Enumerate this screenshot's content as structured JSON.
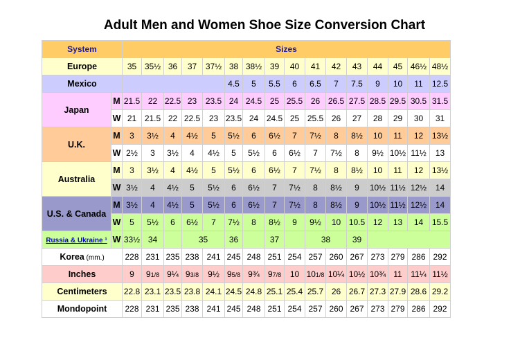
{
  "title": "Adult Men and Women Shoe Size Conversion Chart",
  "header": {
    "system_label": "System",
    "sizes_label": "Sizes"
  },
  "rows": [
    {
      "label": "Europe",
      "bg": "#ffffcc",
      "cells": [
        {
          "t": "35"
        },
        {
          "t": "35½"
        },
        {
          "t": "36"
        },
        {
          "t": "37"
        },
        {
          "t": "37½"
        },
        {
          "t": "38"
        },
        {
          "t": "38½"
        },
        {
          "t": "39"
        },
        {
          "t": "40"
        },
        {
          "t": "41"
        },
        {
          "t": "42"
        },
        {
          "t": "43"
        },
        {
          "t": "44"
        },
        {
          "t": "45"
        },
        {
          "t": "46½"
        },
        {
          "t": "48½"
        }
      ]
    },
    {
      "label": "Mexico",
      "bg": "#ccccff",
      "cells": [
        {
          "t": "",
          "span": 5
        },
        {
          "t": "4.5"
        },
        {
          "t": "5"
        },
        {
          "t": "5.5"
        },
        {
          "t": "6"
        },
        {
          "t": "6.5"
        },
        {
          "t": "7"
        },
        {
          "t": "7.5"
        },
        {
          "t": "9"
        },
        {
          "t": "10"
        },
        {
          "t": "11"
        },
        {
          "t": "12.5"
        }
      ]
    },
    {
      "label": "Japan",
      "rowspan": 2,
      "mw": "M",
      "bg": "#ffccff",
      "cells": [
        {
          "t": "21.5"
        },
        {
          "t": "22"
        },
        {
          "t": "22.5"
        },
        {
          "t": "23"
        },
        {
          "t": "23.5"
        },
        {
          "t": "24"
        },
        {
          "t": "24.5"
        },
        {
          "t": "25"
        },
        {
          "t": "25.5"
        },
        {
          "t": "26"
        },
        {
          "t": "26.5"
        },
        {
          "t": "27.5"
        },
        {
          "t": "28.5"
        },
        {
          "t": "29.5"
        },
        {
          "t": "30.5"
        },
        {
          "t": "31.5"
        }
      ]
    },
    {
      "mw": "W",
      "bg": "#ffffff",
      "cells": [
        {
          "t": "21"
        },
        {
          "t": "21.5"
        },
        {
          "t": "22"
        },
        {
          "t": "22.5"
        },
        {
          "t": "23"
        },
        {
          "t": "23.5"
        },
        {
          "t": "24"
        },
        {
          "t": "24.5"
        },
        {
          "t": "25"
        },
        {
          "t": "25.5"
        },
        {
          "t": "26"
        },
        {
          "t": "27"
        },
        {
          "t": "28"
        },
        {
          "t": "29"
        },
        {
          "t": "30"
        },
        {
          "t": "31"
        }
      ]
    },
    {
      "label": "U.K.",
      "rowspan": 2,
      "mw": "M",
      "bg": "#ffcc99",
      "cells": [
        {
          "t": "3"
        },
        {
          "t": "3½"
        },
        {
          "t": "4"
        },
        {
          "t": "4½"
        },
        {
          "t": "5"
        },
        {
          "t": "5½"
        },
        {
          "t": "6"
        },
        {
          "t": "6½"
        },
        {
          "t": "7"
        },
        {
          "t": "7½"
        },
        {
          "t": "8"
        },
        {
          "t": "8½"
        },
        {
          "t": "10"
        },
        {
          "t": "11"
        },
        {
          "t": "12"
        },
        {
          "t": "13½"
        }
      ]
    },
    {
      "mw": "W",
      "bg": "#ffffff",
      "cells": [
        {
          "t": "2½"
        },
        {
          "t": "3"
        },
        {
          "t": "3½"
        },
        {
          "t": "4"
        },
        {
          "t": "4½"
        },
        {
          "t": "5"
        },
        {
          "t": "5½"
        },
        {
          "t": "6"
        },
        {
          "t": "6½"
        },
        {
          "t": "7"
        },
        {
          "t": "7½"
        },
        {
          "t": "8"
        },
        {
          "t": "9½"
        },
        {
          "t": "10½"
        },
        {
          "t": "11½"
        },
        {
          "t": "13"
        }
      ]
    },
    {
      "label": "Australia",
      "rowspan": 2,
      "mw": "M",
      "bg": "#ffffcc",
      "cells": [
        {
          "t": "3"
        },
        {
          "t": "3½"
        },
        {
          "t": "4"
        },
        {
          "t": "4½"
        },
        {
          "t": "5"
        },
        {
          "t": "5½"
        },
        {
          "t": "6"
        },
        {
          "t": "6½"
        },
        {
          "t": "7"
        },
        {
          "t": "7½"
        },
        {
          "t": "8"
        },
        {
          "t": "8½"
        },
        {
          "t": "10"
        },
        {
          "t": "11"
        },
        {
          "t": "12"
        },
        {
          "t": "13½"
        }
      ]
    },
    {
      "mw": "W",
      "bg": "#cccccc",
      "cells": [
        {
          "t": "3½"
        },
        {
          "t": "4"
        },
        {
          "t": "4½"
        },
        {
          "t": "5"
        },
        {
          "t": "5½"
        },
        {
          "t": "6"
        },
        {
          "t": "6½"
        },
        {
          "t": "7"
        },
        {
          "t": "7½"
        },
        {
          "t": "8"
        },
        {
          "t": "8½"
        },
        {
          "t": "9"
        },
        {
          "t": "10½"
        },
        {
          "t": "11½"
        },
        {
          "t": "12½"
        },
        {
          "t": "14"
        }
      ]
    },
    {
      "label": "U.S. & Canada",
      "rowspan": 2,
      "mw": "M",
      "bg": "#9999cc",
      "cells": [
        {
          "t": "3½"
        },
        {
          "t": "4"
        },
        {
          "t": "4½"
        },
        {
          "t": "5"
        },
        {
          "t": "5½"
        },
        {
          "t": "6"
        },
        {
          "t": "6½"
        },
        {
          "t": "7"
        },
        {
          "t": "7½"
        },
        {
          "t": "8"
        },
        {
          "t": "8½"
        },
        {
          "t": "9"
        },
        {
          "t": "10½"
        },
        {
          "t": "11½"
        },
        {
          "t": "12½"
        },
        {
          "t": "14"
        }
      ]
    },
    {
      "mw": "W",
      "bg": "#ccff99",
      "cells": [
        {
          "t": "5"
        },
        {
          "t": "5½"
        },
        {
          "t": "6"
        },
        {
          "t": "6½"
        },
        {
          "t": "7"
        },
        {
          "t": "7½"
        },
        {
          "t": "8"
        },
        {
          "t": "8½"
        },
        {
          "t": "9"
        },
        {
          "t": "9½"
        },
        {
          "t": "10"
        },
        {
          "t": "10.5"
        },
        {
          "t": "12"
        },
        {
          "t": "13"
        },
        {
          "t": "14"
        },
        {
          "t": "15.5"
        }
      ]
    },
    {
      "label": "Russia & Ukraine ¹",
      "link": true,
      "mw": "W",
      "bg": "#ccff99",
      "cells": [
        {
          "t": "33½"
        },
        {
          "t": "34"
        },
        {
          "t": ""
        },
        {
          "t": "35",
          "span": 2
        },
        {
          "t": "36"
        },
        {
          "t": ""
        },
        {
          "t": "37"
        },
        {
          "t": ""
        },
        {
          "t": "38",
          "span": 2
        },
        {
          "t": "39"
        },
        {
          "t": "",
          "span": 4
        }
      ]
    },
    {
      "label": "Korea",
      "unit": "(mm.)",
      "bg": "#ffffff",
      "cells": [
        {
          "t": "228"
        },
        {
          "t": "231"
        },
        {
          "t": "235"
        },
        {
          "t": "238"
        },
        {
          "t": "241"
        },
        {
          "t": "245"
        },
        {
          "t": "248"
        },
        {
          "t": "251"
        },
        {
          "t": "254"
        },
        {
          "t": "257"
        },
        {
          "t": "260"
        },
        {
          "t": "267"
        },
        {
          "t": "273"
        },
        {
          "t": "279"
        },
        {
          "t": "286"
        },
        {
          "t": "292"
        }
      ]
    },
    {
      "label": "Inches",
      "bg": "#ffcccc",
      "cells": [
        {
          "t": "9"
        },
        {
          "w": "9",
          "n": "1/8"
        },
        {
          "t": "9¼"
        },
        {
          "w": "9",
          "n": "3/8"
        },
        {
          "t": "9½"
        },
        {
          "w": "9",
          "n": "5/8"
        },
        {
          "t": "9¾"
        },
        {
          "w": "9",
          "n": "7/8"
        },
        {
          "t": "10"
        },
        {
          "w": "10",
          "n": "1/8"
        },
        {
          "t": "10¼"
        },
        {
          "t": "10½"
        },
        {
          "t": "10¾"
        },
        {
          "t": "11"
        },
        {
          "t": "11¼"
        },
        {
          "t": "11½"
        }
      ]
    },
    {
      "label": "Centimeters",
      "bg": "#ffffcc",
      "cells": [
        {
          "t": "22.8"
        },
        {
          "t": "23.1"
        },
        {
          "t": "23.5"
        },
        {
          "t": "23.8"
        },
        {
          "t": "24.1"
        },
        {
          "t": "24.5"
        },
        {
          "t": "24.8"
        },
        {
          "t": "25.1"
        },
        {
          "t": "25.4"
        },
        {
          "t": "25.7"
        },
        {
          "t": "26"
        },
        {
          "t": "26.7"
        },
        {
          "t": "27.3"
        },
        {
          "t": "27.9"
        },
        {
          "t": "28.6"
        },
        {
          "t": "29.2"
        }
      ]
    },
    {
      "label": "Mondopoint",
      "bg": "#ffffff",
      "cells": [
        {
          "t": "228"
        },
        {
          "t": "231"
        },
        {
          "t": "235"
        },
        {
          "t": "238"
        },
        {
          "t": "241"
        },
        {
          "t": "245"
        },
        {
          "t": "248"
        },
        {
          "t": "251"
        },
        {
          "t": "254"
        },
        {
          "t": "257"
        },
        {
          "t": "260"
        },
        {
          "t": "267"
        },
        {
          "t": "273"
        },
        {
          "t": "279"
        },
        {
          "t": "286"
        },
        {
          "t": "292"
        }
      ]
    }
  ],
  "colors": {
    "header_bg": "#ffcc66",
    "header_text": "#1a1aa6",
    "border": "#cfcfcf",
    "link": "#0000cc"
  }
}
